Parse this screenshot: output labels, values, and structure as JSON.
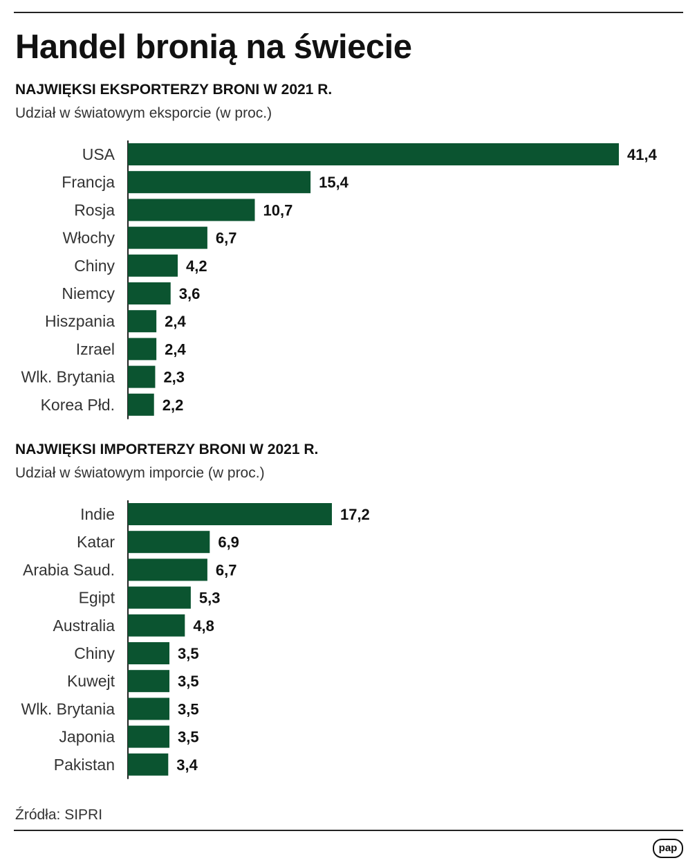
{
  "title": "Handel bronią na świecie",
  "source": "Źródła: SIPRI",
  "logo_text": "pap",
  "colors": {
    "bar": "#0b5430",
    "text": "#111111",
    "axis": "#222222"
  },
  "chart_data": [
    {
      "type": "bar",
      "orientation": "horizontal",
      "title": "NAJWIĘKSI EKSPORTERZY BRONI W 2021 R.",
      "subtitle": "Udział w światowym eksporcie (w proc.)",
      "categories": [
        "USA",
        "Francja",
        "Rosja",
        "Włochy",
        "Chiny",
        "Niemcy",
        "Hiszpania",
        "Izrael",
        "Wlk. Brytania",
        "Korea Płd."
      ],
      "values": [
        41.4,
        15.4,
        10.7,
        6.7,
        4.2,
        3.6,
        2.4,
        2.4,
        2.3,
        2.2
      ],
      "value_labels": [
        "41,4",
        "15,4",
        "10,7",
        "6,7",
        "4,2",
        "3,6",
        "2,4",
        "2,4",
        "2,3",
        "2,2"
      ],
      "xlim": [
        0,
        41.4
      ],
      "grid": false
    },
    {
      "type": "bar",
      "orientation": "horizontal",
      "title": "NAJWIĘKSI IMPORTERZY BRONI  W 2021 R.",
      "subtitle": "Udział w światowym imporcie (w proc.)",
      "categories": [
        "Indie",
        "Katar",
        "Arabia Saud.",
        "Egipt",
        "Australia",
        "Chiny",
        "Kuwejt",
        "Wlk. Brytania",
        "Japonia",
        "Pakistan"
      ],
      "values": [
        17.2,
        6.9,
        6.7,
        5.3,
        4.8,
        3.5,
        3.5,
        3.5,
        3.5,
        3.4
      ],
      "value_labels": [
        "17,2",
        "6,9",
        "6,7",
        "5,3",
        "4,8",
        "3,5",
        "3,5",
        "3,5",
        "3,5",
        "3,4"
      ],
      "xlim": [
        0,
        41.4
      ],
      "grid": false
    }
  ]
}
